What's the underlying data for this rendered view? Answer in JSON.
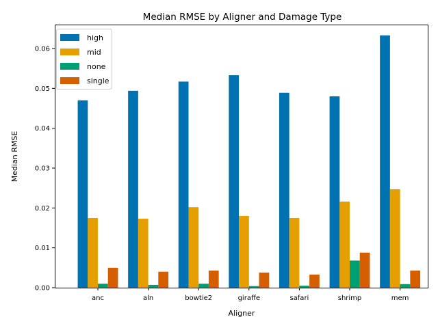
{
  "chart_data": {
    "type": "bar",
    "title": "Median RMSE by Aligner and Damage Type",
    "xlabel": "Aligner",
    "ylabel": "Median RMSE",
    "categories": [
      "anc",
      "aln",
      "bowtie2",
      "giraffe",
      "safari",
      "shrimp",
      "mem"
    ],
    "ylim": [
      0,
      0.066
    ],
    "yticks": [
      "0.00",
      "0.01",
      "0.02",
      "0.03",
      "0.04",
      "0.05",
      "0.06"
    ],
    "ytick_values": [
      0,
      0.01,
      0.02,
      0.03,
      0.04,
      0.05,
      0.06
    ],
    "grid": false,
    "legend_position": "top-left",
    "series": [
      {
        "name": "high",
        "color": "#0072b2",
        "values": [
          0.047,
          0.0494,
          0.0517,
          0.0533,
          0.0489,
          0.048,
          0.0633
        ]
      },
      {
        "name": "mid",
        "color": "#e69f00",
        "values": [
          0.0175,
          0.0173,
          0.0202,
          0.018,
          0.0175,
          0.0216,
          0.0247
        ]
      },
      {
        "name": "none",
        "color": "#009e73",
        "values": [
          0.001,
          0.0007,
          0.001,
          0.0004,
          0.0005,
          0.0068,
          0.0009
        ]
      },
      {
        "name": "single",
        "color": "#d55e00",
        "values": [
          0.005,
          0.004,
          0.0043,
          0.0038,
          0.0033,
          0.0088,
          0.0043
        ]
      }
    ]
  }
}
